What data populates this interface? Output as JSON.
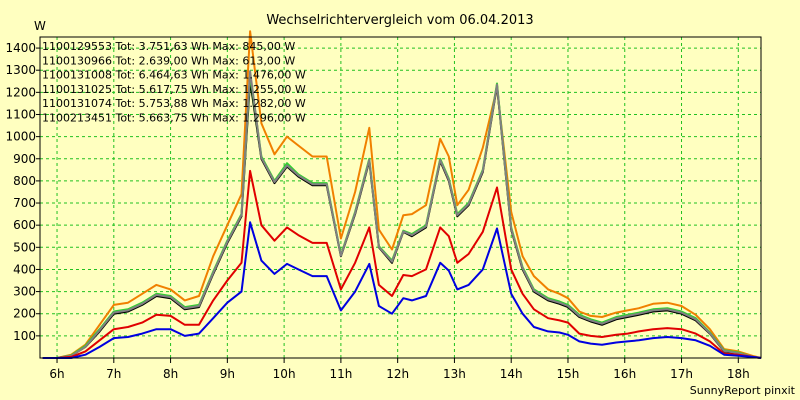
{
  "chart_data": {
    "type": "line",
    "title": "Wechselrichtervergleich vom 06.04.2013",
    "ylabel": "W",
    "xlabel": "",
    "ylim": [
      0,
      1450
    ],
    "xlim": [
      5.7,
      18.4
    ],
    "y_ticks": [
      100,
      200,
      300,
      400,
      500,
      600,
      700,
      800,
      900,
      1000,
      1100,
      1200,
      1300,
      1400
    ],
    "x_ticks": [
      6,
      7,
      8,
      9,
      10,
      11,
      12,
      13,
      14,
      15,
      16,
      17,
      18
    ],
    "x_tick_labels": [
      "6h",
      "7h",
      "8h",
      "9h",
      "10h",
      "11h",
      "12h",
      "13h",
      "14h",
      "15h",
      "16h",
      "17h",
      "18h"
    ],
    "grid": true,
    "footer": "SunnyReport pinxit",
    "x": [
      5.75,
      6.0,
      6.25,
      6.5,
      6.75,
      7.0,
      7.25,
      7.5,
      7.75,
      8.0,
      8.25,
      8.5,
      8.75,
      9.0,
      9.25,
      9.4,
      9.6,
      9.83,
      10.05,
      10.25,
      10.5,
      10.75,
      11.0,
      11.25,
      11.5,
      11.67,
      11.9,
      12.1,
      12.25,
      12.5,
      12.75,
      12.9,
      13.05,
      13.25,
      13.5,
      13.75,
      14.0,
      14.2,
      14.4,
      14.65,
      14.85,
      15.0,
      15.2,
      15.4,
      15.6,
      15.85,
      16.05,
      16.25,
      16.5,
      16.75,
      17.0,
      17.25,
      17.5,
      17.75,
      18.0,
      18.25,
      18.4
    ],
    "series": [
      {
        "id": "1100129553",
        "legend": "1100129553 Tot: 3.751,63 Wh Max: 845,00 W",
        "color": "#E00000",
        "values": [
          0,
          0,
          5,
          30,
          80,
          130,
          140,
          160,
          195,
          190,
          150,
          150,
          260,
          350,
          430,
          845,
          600,
          530,
          590,
          555,
          520,
          520,
          310,
          430,
          590,
          330,
          280,
          375,
          370,
          400,
          590,
          550,
          430,
          470,
          570,
          770,
          400,
          290,
          220,
          180,
          170,
          160,
          110,
          100,
          95,
          105,
          110,
          120,
          130,
          135,
          130,
          110,
          75,
          20,
          15,
          5,
          0
        ]
      },
      {
        "id": "1100130966",
        "legend": "1100130966 Tot: 2.639,00 Wh Max: 613,00 W",
        "color": "#0000E0",
        "values": [
          0,
          0,
          0,
          15,
          50,
          90,
          95,
          110,
          130,
          130,
          100,
          110,
          180,
          250,
          300,
          613,
          440,
          380,
          425,
          400,
          370,
          370,
          215,
          300,
          425,
          235,
          200,
          270,
          260,
          280,
          430,
          395,
          310,
          330,
          400,
          585,
          290,
          200,
          140,
          120,
          115,
          105,
          75,
          65,
          60,
          70,
          75,
          80,
          90,
          95,
          90,
          80,
          55,
          15,
          10,
          5,
          0
        ]
      },
      {
        "id": "1100131008",
        "legend": "1100131008 Tot: 6.464,63 Wh Max: 1.476,00 W",
        "color": "#F08000",
        "values": [
          0,
          0,
          15,
          60,
          150,
          240,
          250,
          290,
          330,
          310,
          260,
          280,
          460,
          600,
          740,
          1476,
          1060,
          920,
          1000,
          960,
          910,
          910,
          540,
          750,
          1040,
          580,
          490,
          645,
          650,
          690,
          990,
          910,
          690,
          760,
          950,
          1220,
          660,
          460,
          370,
          310,
          290,
          270,
          210,
          190,
          185,
          205,
          215,
          225,
          245,
          250,
          235,
          195,
          130,
          40,
          30,
          10,
          0
        ]
      },
      {
        "id": "1100131025",
        "legend": "1100131025 Tot: 5.617,75 Wh Max: 1.255,00 W",
        "color": "#000000",
        "values": [
          0,
          0,
          10,
          50,
          120,
          200,
          210,
          240,
          280,
          270,
          220,
          230,
          380,
          520,
          640,
          1255,
          900,
          790,
          865,
          820,
          780,
          780,
          460,
          650,
          890,
          500,
          430,
          570,
          550,
          590,
          890,
          800,
          640,
          690,
          840,
          1230,
          580,
          400,
          300,
          260,
          245,
          230,
          185,
          165,
          150,
          175,
          185,
          195,
          210,
          215,
          200,
          170,
          110,
          30,
          20,
          5,
          0
        ]
      },
      {
        "id": "1100131074",
        "legend": "1100131074 Tot: 5.753,88 Wh Max: 1.282,00 W",
        "color": "#30D030",
        "values": [
          0,
          0,
          12,
          55,
          130,
          210,
          220,
          250,
          290,
          280,
          230,
          240,
          390,
          530,
          650,
          1282,
          910,
          800,
          880,
          830,
          790,
          790,
          465,
          660,
          900,
          505,
          440,
          575,
          560,
          600,
          900,
          810,
          650,
          700,
          850,
          1240,
          590,
          410,
          310,
          270,
          255,
          240,
          195,
          175,
          160,
          185,
          195,
          205,
          220,
          225,
          210,
          180,
          115,
          35,
          25,
          5,
          0
        ]
      },
      {
        "id": "1100213451",
        "legend": "1100213451 Tot: 5.663,75 Wh Max: 1.296,00 W",
        "color": "#808080",
        "values": [
          0,
          0,
          10,
          50,
          125,
          205,
          215,
          245,
          285,
          275,
          225,
          235,
          385,
          525,
          645,
          1296,
          905,
          795,
          870,
          825,
          785,
          785,
          462,
          655,
          895,
          502,
          435,
          572,
          555,
          595,
          895,
          805,
          645,
          695,
          845,
          1235,
          585,
          405,
          305,
          265,
          250,
          235,
          190,
          170,
          155,
          180,
          190,
          200,
          215,
          220,
          205,
          175,
          112,
          32,
          22,
          5,
          0
        ]
      }
    ]
  }
}
